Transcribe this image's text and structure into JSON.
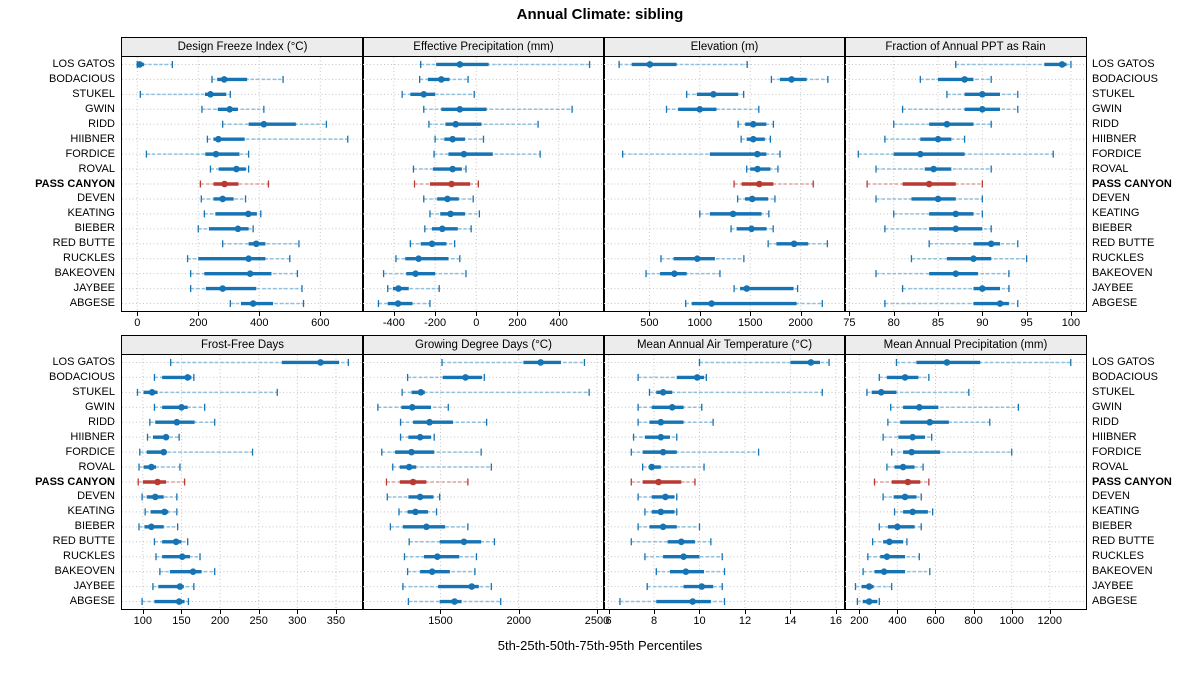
{
  "title": "Annual Climate: sibling",
  "axis_label": "5th-25th-50th-75th-95th Percentiles",
  "highlight_station": "PASS CANYON",
  "colors": {
    "series": "#1673b4",
    "series_light": "#8fc0de",
    "highlight": "#b93a33",
    "highlight_light": "#e0a49e",
    "grid": "#c6c6c6",
    "strip_bg": "#ececec",
    "border": "#000000"
  },
  "chart_data": {
    "type": "dotplot-percentiles",
    "percentiles": [
      5,
      25,
      50,
      75,
      95
    ],
    "legend_note": "dot=median, thick bar=25th-75th, dashed whisker=5th-95th",
    "rows": [
      "LOS GATOS",
      "BODACIOUS",
      "STUKEL",
      "GWIN",
      "RIDD",
      "HIIBNER",
      "FORDICE",
      "ROVAL",
      "PASS CANYON",
      "DEVEN",
      "KEATING",
      "BIEBER",
      "RED BUTTE",
      "RUCKLES",
      "BAKEOVEN",
      "JAYBEE",
      "ABGESE"
    ],
    "panels": [
      {
        "title": "Design Freeze Index (°C)",
        "xlim": [
          -50,
          740
        ],
        "ticks": [
          0,
          200,
          400,
          600
        ],
        "values": [
          [
            0,
            2,
            8,
            22,
            115
          ],
          [
            245,
            262,
            285,
            360,
            478
          ],
          [
            10,
            222,
            240,
            292,
            305
          ],
          [
            212,
            264,
            303,
            330,
            415
          ],
          [
            280,
            365,
            415,
            520,
            620
          ],
          [
            230,
            250,
            266,
            352,
            690
          ],
          [
            30,
            223,
            258,
            335,
            365
          ],
          [
            240,
            267,
            325,
            356,
            365
          ],
          [
            207,
            250,
            286,
            332,
            430
          ],
          [
            210,
            250,
            280,
            316,
            355
          ],
          [
            220,
            256,
            364,
            392,
            405
          ],
          [
            200,
            235,
            330,
            365,
            380
          ],
          [
            280,
            365,
            390,
            420,
            530
          ],
          [
            165,
            200,
            365,
            420,
            500
          ],
          [
            175,
            220,
            370,
            440,
            525
          ],
          [
            175,
            225,
            280,
            390,
            540
          ],
          [
            305,
            340,
            380,
            445,
            545
          ]
        ]
      },
      {
        "title": "Effective Precipitation (mm)",
        "xlim": [
          -550,
          620
        ],
        "ticks": [
          -400,
          -200,
          0,
          200,
          400
        ],
        "values": [
          [
            -270,
            -195,
            -80,
            60,
            550
          ],
          [
            -275,
            -235,
            -170,
            -130,
            -40
          ],
          [
            -360,
            -320,
            -255,
            -200,
            -10
          ],
          [
            -255,
            -170,
            -80,
            50,
            465
          ],
          [
            -230,
            -150,
            -100,
            25,
            300
          ],
          [
            -200,
            -155,
            -115,
            -55,
            35
          ],
          [
            -205,
            -135,
            -60,
            80,
            310
          ],
          [
            -305,
            -210,
            -115,
            -70,
            -50
          ],
          [
            -300,
            -225,
            -120,
            -30,
            10
          ],
          [
            -255,
            -190,
            -140,
            -85,
            -15
          ],
          [
            -225,
            -175,
            -125,
            -55,
            15
          ],
          [
            -250,
            -215,
            -165,
            -90,
            -25
          ],
          [
            -320,
            -270,
            -215,
            -145,
            -105
          ],
          [
            -390,
            -345,
            -280,
            -135,
            -80
          ],
          [
            -450,
            -340,
            -295,
            -200,
            -50
          ],
          [
            -430,
            -405,
            -378,
            -328,
            -180
          ],
          [
            -475,
            -430,
            -380,
            -310,
            -225
          ]
        ]
      },
      {
        "title": "Elevation (m)",
        "xlim": [
          50,
          2440
        ],
        "ticks": [
          500,
          1000,
          1500,
          2000
        ],
        "values": [
          [
            200,
            325,
            505,
            770,
            1470
          ],
          [
            1710,
            1795,
            1910,
            2060,
            2270
          ],
          [
            870,
            970,
            1135,
            1380,
            1435
          ],
          [
            670,
            785,
            1000,
            1165,
            1585
          ],
          [
            1380,
            1450,
            1530,
            1660,
            1730
          ],
          [
            1410,
            1465,
            1530,
            1645,
            1700
          ],
          [
            235,
            1100,
            1570,
            1660,
            1795
          ],
          [
            1465,
            1500,
            1572,
            1700,
            1775
          ],
          [
            1340,
            1415,
            1590,
            1730,
            2125
          ],
          [
            1375,
            1448,
            1520,
            1678,
            1745
          ],
          [
            1000,
            1100,
            1330,
            1612,
            1685
          ],
          [
            1310,
            1365,
            1513,
            1662,
            1728
          ],
          [
            1678,
            1760,
            1935,
            2075,
            2265
          ],
          [
            615,
            740,
            975,
            1150,
            1437
          ],
          [
            467,
            606,
            748,
            870,
            1200
          ],
          [
            1340,
            1400,
            1465,
            1930,
            1970
          ],
          [
            860,
            920,
            1117,
            1960,
            2215
          ]
        ]
      },
      {
        "title": "Fraction of Annual PPT as Rain",
        "xlim": [
          74.5,
          101.7
        ],
        "ticks": [
          75,
          80,
          85,
          90,
          95,
          100
        ],
        "values": [
          [
            87,
            97,
            99,
            99.5,
            100
          ],
          [
            83,
            85,
            88,
            89,
            91
          ],
          [
            86,
            88,
            90,
            92,
            94
          ],
          [
            81,
            88,
            90,
            92,
            94
          ],
          [
            80,
            84,
            86,
            89,
            91
          ],
          [
            79,
            83,
            85,
            86.5,
            88
          ],
          [
            76,
            80,
            83,
            88,
            98
          ],
          [
            78,
            83.5,
            84.5,
            86.5,
            91
          ],
          [
            77,
            81,
            84,
            87,
            90
          ],
          [
            78,
            82,
            85,
            87,
            90
          ],
          [
            80,
            84,
            87,
            89,
            90
          ],
          [
            79,
            84,
            87,
            90,
            91
          ],
          [
            84,
            89,
            91,
            92,
            94
          ],
          [
            82,
            86,
            89,
            91,
            95
          ],
          [
            78,
            84,
            87,
            89.5,
            93
          ],
          [
            81,
            89,
            90,
            92,
            93
          ],
          [
            79,
            89,
            92,
            93,
            94
          ]
        ]
      },
      {
        "title": "Frost-Free Days",
        "xlim": [
          73,
          385
        ],
        "ticks": [
          100,
          150,
          200,
          250,
          300,
          350
        ],
        "values": [
          [
            136,
            280,
            330,
            354,
            366
          ],
          [
            115,
            125,
            158,
            163,
            166
          ],
          [
            93,
            101,
            112,
            119,
            274
          ],
          [
            115,
            125,
            150,
            158,
            180
          ],
          [
            109,
            116,
            144,
            167,
            193
          ],
          [
            106,
            113,
            130,
            133,
            147
          ],
          [
            96,
            105,
            127,
            130,
            242
          ],
          [
            95,
            101,
            111,
            117,
            148
          ],
          [
            94,
            100,
            119,
            130,
            154
          ],
          [
            99,
            105,
            116,
            127,
            144
          ],
          [
            103,
            110,
            128,
            133,
            144
          ],
          [
            95,
            102,
            111,
            127,
            145
          ],
          [
            115,
            125,
            143,
            150,
            158
          ],
          [
            117,
            125,
            151,
            161,
            174
          ],
          [
            122,
            135,
            165,
            176,
            193
          ],
          [
            113,
            120,
            148,
            153,
            166
          ],
          [
            99,
            115,
            147,
            154,
            159
          ]
        ]
      },
      {
        "title": "Growing Degree Days (°C)",
        "xlim": [
          1005,
          2545
        ],
        "ticks": [
          1500,
          2000,
          2500
        ],
        "values": [
          [
            1510,
            2030,
            2140,
            2270,
            2420
          ],
          [
            1290,
            1515,
            1660,
            1765,
            1780
          ],
          [
            1255,
            1315,
            1375,
            1400,
            2450
          ],
          [
            1100,
            1250,
            1320,
            1440,
            1550
          ],
          [
            1245,
            1325,
            1430,
            1580,
            1795
          ],
          [
            1245,
            1295,
            1370,
            1440,
            1460
          ],
          [
            1125,
            1210,
            1315,
            1460,
            1760
          ],
          [
            1195,
            1240,
            1300,
            1345,
            1825
          ],
          [
            1155,
            1240,
            1325,
            1410,
            1675
          ],
          [
            1160,
            1295,
            1370,
            1455,
            1495
          ],
          [
            1235,
            1290,
            1340,
            1420,
            1475
          ],
          [
            1180,
            1260,
            1410,
            1530,
            1675
          ],
          [
            1300,
            1495,
            1650,
            1760,
            1845
          ],
          [
            1270,
            1395,
            1480,
            1620,
            1730
          ],
          [
            1290,
            1370,
            1447,
            1560,
            1720
          ],
          [
            1260,
            1485,
            1700,
            1745,
            1825
          ],
          [
            1295,
            1495,
            1590,
            1635,
            1885
          ]
        ]
      },
      {
        "title": "Mean Annual Air Temperature (°C)",
        "xlim": [
          5.8,
          16.4
        ],
        "ticks": [
          6,
          8,
          10,
          12,
          14,
          16
        ],
        "values": [
          [
            10.0,
            14.0,
            14.9,
            15.3,
            15.7
          ],
          [
            7.3,
            9.0,
            9.9,
            10.2,
            10.3
          ],
          [
            7.8,
            8.1,
            8.4,
            8.8,
            15.4
          ],
          [
            7.3,
            7.9,
            8.8,
            9.3,
            10.1
          ],
          [
            7.3,
            7.8,
            8.3,
            9.3,
            10.6
          ],
          [
            7.1,
            7.6,
            8.3,
            8.7,
            9.0
          ],
          [
            7.0,
            7.5,
            8.4,
            9.0,
            12.6
          ],
          [
            7.5,
            7.8,
            7.9,
            8.3,
            10.2
          ],
          [
            7.0,
            7.5,
            8.2,
            9.2,
            9.8
          ],
          [
            7.3,
            7.9,
            8.5,
            8.9,
            9.0
          ],
          [
            7.6,
            7.9,
            8.3,
            8.9,
            9.0
          ],
          [
            7.3,
            7.8,
            8.4,
            9.0,
            10.0
          ],
          [
            7.0,
            8.6,
            9.2,
            9.8,
            10.5
          ],
          [
            7.6,
            8.4,
            9.3,
            10.0,
            11.0
          ],
          [
            8.1,
            8.7,
            9.4,
            10.2,
            11.1
          ],
          [
            7.7,
            9.3,
            10.1,
            10.6,
            11.0
          ],
          [
            6.5,
            8.1,
            9.7,
            10.5,
            11.1
          ]
        ]
      },
      {
        "title": "Mean Annual Precipitation (mm)",
        "xlim": [
          125,
          1390
        ],
        "ticks": [
          200,
          400,
          600,
          800,
          1000,
          1200
        ],
        "values": [
          [
            395,
            500,
            660,
            835,
            1310
          ],
          [
            305,
            345,
            440,
            510,
            565
          ],
          [
            240,
            265,
            315,
            395,
            775
          ],
          [
            365,
            430,
            515,
            615,
            1035
          ],
          [
            350,
            415,
            570,
            670,
            885
          ],
          [
            325,
            405,
            480,
            545,
            580
          ],
          [
            370,
            430,
            475,
            625,
            1000
          ],
          [
            345,
            385,
            430,
            490,
            535
          ],
          [
            280,
            370,
            455,
            520,
            565
          ],
          [
            325,
            380,
            440,
            500,
            525
          ],
          [
            385,
            430,
            480,
            560,
            585
          ],
          [
            305,
            350,
            400,
            490,
            525
          ],
          [
            270,
            325,
            358,
            430,
            450
          ],
          [
            245,
            310,
            345,
            440,
            515
          ],
          [
            220,
            280,
            330,
            440,
            570
          ],
          [
            180,
            212,
            252,
            275,
            370
          ],
          [
            190,
            218,
            252,
            295,
            305
          ]
        ]
      }
    ]
  }
}
